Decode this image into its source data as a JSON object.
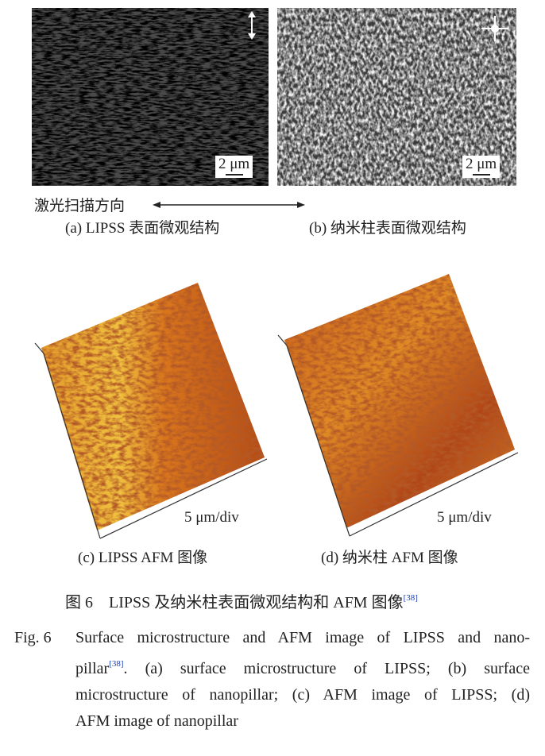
{
  "panels": {
    "a": {
      "scale_label": "2 μm",
      "caption": "(a) LIPSS 表面微观结构"
    },
    "b": {
      "scale_label": "2 μm",
      "caption": "(b) 纳米柱表面微观结构"
    },
    "c": {
      "scale_label": "5 μm/div",
      "caption": "(c) LIPSS AFM 图像"
    },
    "d": {
      "scale_label": "5 μm/div",
      "caption": "(d) 纳米柱 AFM 图像"
    }
  },
  "scan_direction_label": "激光扫描方向",
  "caption_cn": {
    "prefix": "图 6",
    "text": "LIPSS 及纳米柱表面微观结构和 AFM 图像",
    "ref": "[38]"
  },
  "caption_en": {
    "prefix": "Fig. 6",
    "line1": "Surface microstructure and AFM image of LIPSS and nano-",
    "line2_start": "pillar",
    "ref": "[38]",
    "line2_rest": ". (a) surface microstructure of LIPSS; (b) surface",
    "line3": "microstructure of nanopillar; (c) AFM image of LIPSS; (d)",
    "line4": "AFM image of nanopillar"
  },
  "colors": {
    "afm_light": "#f2c23a",
    "afm_mid": "#d9761c",
    "afm_dark": "#8c2a0c",
    "sem_gray": "#6a6a6a"
  }
}
